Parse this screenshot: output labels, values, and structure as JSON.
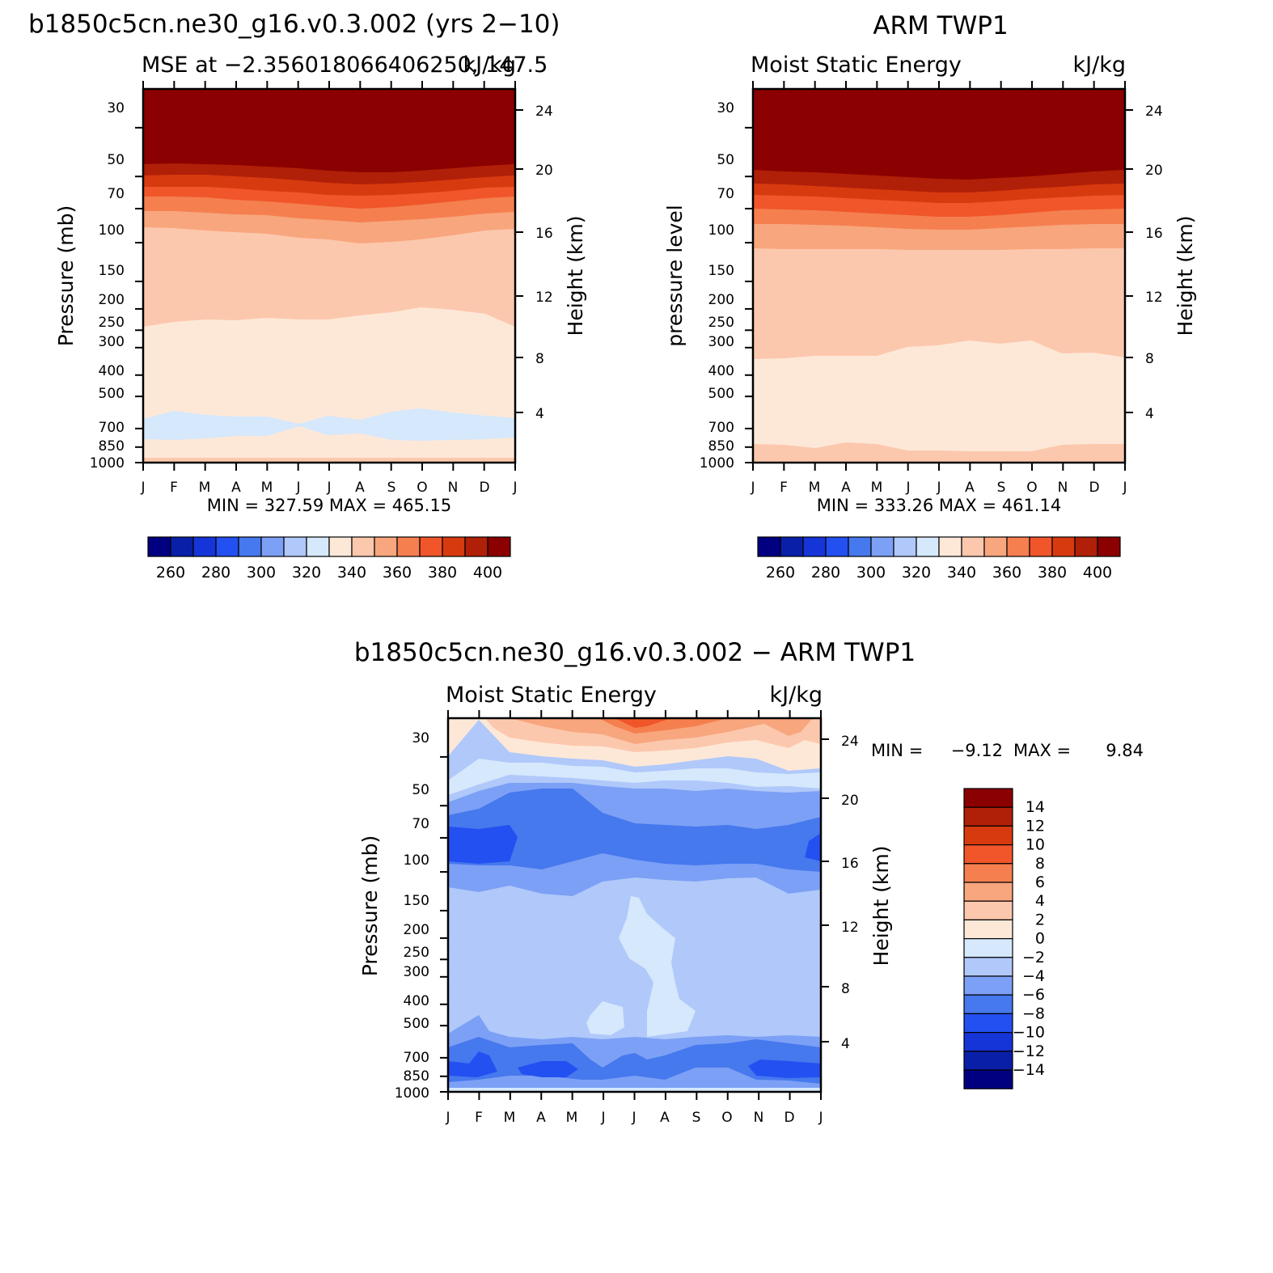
{
  "months": [
    "J",
    "F",
    "M",
    "A",
    "M",
    "J",
    "J",
    "A",
    "S",
    "O",
    "N",
    "D",
    "J"
  ],
  "pressure_ticks": [
    30,
    50,
    70,
    100,
    150,
    200,
    250,
    300,
    400,
    500,
    700,
    850,
    1000
  ],
  "height_ticks": [
    24,
    20,
    16,
    12,
    8,
    4
  ],
  "panels": [
    {
      "title": "b1850c5cn.ne30_g16.v0.3.002 (yrs 2−10)",
      "left_label": "MSE at −2.356018066406250, 147.5",
      "right_label": "kJ/kg",
      "ylabel": "Pressure (mb)",
      "y2label": "Height (km)",
      "minmax": "MIN = 327.59 MAX = 465.15",
      "colorbar_labels": [
        "260",
        "280",
        "300",
        "320",
        "340",
        "360",
        "380",
        "400"
      ]
    },
    {
      "title": "ARM TWP1",
      "left_label": "Moist Static Energy",
      "right_label": "kJ/kg",
      "ylabel": "pressure level",
      "y2label": "Height (km)",
      "minmax": "MIN = 333.26 MAX = 461.14",
      "colorbar_labels": [
        "260",
        "280",
        "300",
        "320",
        "340",
        "360",
        "380",
        "400"
      ]
    },
    {
      "title": "b1850c5cn.ne30_g16.v0.3.002 − ARM TWP1",
      "left_label": "Moist Static Energy",
      "right_label": "kJ/kg",
      "ylabel": "Pressure (mb)",
      "y2label": "Height (km)",
      "minmax_min_label": "MIN =",
      "minmax_min": "−9.12",
      "minmax_max_label": "MAX =",
      "minmax_max": "9.84",
      "colorbar_labels": [
        "14",
        "12",
        "10",
        "8",
        "6",
        "4",
        "2",
        "0",
        "−2",
        "−4",
        "−6",
        "−8",
        "−10",
        "−12",
        "−14"
      ]
    }
  ],
  "colors": {
    "mse_levels": [
      "#000080",
      "#0a1fa8",
      "#1535d8",
      "#2350f0",
      "#4678ee",
      "#7ca0f5",
      "#b0c8fa",
      "#d5e8fc",
      "#fde8d8",
      "#fcc8ad",
      "#f8a67e",
      "#f57f4f",
      "#f0562a",
      "#d83a0f",
      "#b02008",
      "#8b0000"
    ],
    "diff_levels": [
      "#8b0000",
      "#b02008",
      "#d83a0f",
      "#f0562a",
      "#f57f4f",
      "#f8a67e",
      "#fcc8ad",
      "#fde8d8",
      "#d5e8fc",
      "#b0c8fa",
      "#7ca0f5",
      "#4678ee",
      "#2350f0",
      "#1535d8",
      "#0a1fa8",
      "#000080"
    ]
  },
  "chart_data": [
    {
      "type": "heatmap",
      "title": "b1850c5cn.ne30_g16.v0.3.002 (yrs 2−10)",
      "subtitle": "MSE at −2.356018066406250, 147.5",
      "units": "kJ/kg",
      "xlabel": "",
      "ylabel": "Pressure (mb)",
      "y2label": "Height (km)",
      "x": [
        "J",
        "F",
        "M",
        "A",
        "M",
        "J",
        "J",
        "A",
        "S",
        "O",
        "N",
        "D",
        "J"
      ],
      "y_scale": "log",
      "ylim": [
        1000,
        20
      ],
      "contour_levels": [
        260,
        270,
        280,
        290,
        300,
        310,
        320,
        330,
        340,
        350,
        360,
        370,
        380,
        390,
        400
      ],
      "approx_level_boundaries_mb": {
        "above_400": [
          57,
          55,
          56,
          58,
          60,
          62,
          63,
          63,
          62,
          60,
          58,
          57,
          56
        ],
        "390_400": [
          66,
          64,
          65,
          67,
          69,
          72,
          74,
          74,
          72,
          70,
          68,
          66,
          65
        ],
        "380_390": [
          73,
          72,
          73,
          75,
          78,
          81,
          83,
          83,
          81,
          78,
          76,
          74,
          73
        ],
        "370_380": [
          83,
          82,
          83,
          86,
          89,
          92,
          95,
          95,
          92,
          89,
          86,
          84,
          83
        ],
        "360_370": [
          99,
          98,
          100,
          103,
          106,
          110,
          114,
          114,
          110,
          106,
          103,
          99,
          98
        ],
        "350_360": [
          265,
          255,
          250,
          252,
          245,
          245,
          248,
          237,
          228,
          215,
          218,
          230,
          265
        ],
        "340_350": [
          665,
          610,
          635,
          640,
          660,
          720,
          660,
          700,
          620,
          580,
          620,
          640,
          665
        ],
        "330_340": [
          860,
          860,
          855,
          830,
          845,
          760,
          860,
          870,
          870,
          860,
          860,
          855,
          860
        ]
      },
      "min": 327.59,
      "max": 465.15
    },
    {
      "type": "heatmap",
      "title": "ARM TWP1",
      "subtitle": "Moist Static Energy",
      "units": "kJ/kg",
      "xlabel": "",
      "ylabel": "pressure level",
      "y2label": "Height (km)",
      "x": [
        "J",
        "F",
        "M",
        "A",
        "M",
        "J",
        "J",
        "A",
        "S",
        "O",
        "N",
        "D",
        "J"
      ],
      "y_scale": "log",
      "ylim": [
        1000,
        20
      ],
      "contour_levels": [
        260,
        270,
        280,
        290,
        300,
        310,
        320,
        330,
        340,
        350,
        360,
        370,
        380,
        390,
        400
      ],
      "approx_level_boundaries_mb": {
        "above_400": [
          60,
          59,
          60,
          62,
          64,
          66,
          68,
          68,
          66,
          64,
          62,
          60,
          60
        ],
        "390_400": [
          70,
          69,
          70,
          72,
          74,
          77,
          79,
          79,
          77,
          74,
          72,
          70,
          70
        ],
        "380_390": [
          79,
          79,
          80,
          82,
          85,
          88,
          90,
          90,
          87,
          84,
          81,
          80,
          79
        ],
        "370_380": [
          92,
          92,
          93,
          95,
          98,
          101,
          104,
          104,
          101,
          97,
          94,
          92,
          92
        ],
        "360_370": [
          126,
          126,
          125,
          125,
          125,
          127,
          128,
          128,
          127,
          126,
          125,
          125,
          126
        ],
        "350_360": [
          355,
          350,
          345,
          345,
          348,
          315,
          310,
          298,
          312,
          300,
          345,
          340,
          360
        ],
        "340_350": [
          860,
          855,
          870,
          835,
          845,
          900,
          900,
          905,
          905,
          905,
          860,
          860,
          860
        ]
      },
      "min": 333.26,
      "max": 461.14
    },
    {
      "type": "heatmap",
      "title": "b1850c5cn.ne30_g16.v0.3.002 − ARM TWP1",
      "subtitle": "Moist Static Energy",
      "units": "kJ/kg",
      "xlabel": "",
      "ylabel": "Pressure (mb)",
      "y2label": "Height (km)",
      "x": [
        "J",
        "F",
        "M",
        "A",
        "M",
        "J",
        "J",
        "A",
        "S",
        "O",
        "N",
        "D",
        "J"
      ],
      "y_scale": "log",
      "ylim": [
        1000,
        20
      ],
      "contour_levels": [
        -14,
        -12,
        -10,
        -8,
        -6,
        -4,
        -2,
        0,
        2,
        4,
        6,
        8,
        10,
        12,
        14
      ],
      "approx_level_boundaries_mb": {
        "0_2_top": [
          32,
          20,
          24,
          26,
          29,
          31,
          33,
          33,
          32,
          31,
          27,
          29,
          32
        ],
        "-2_0": [
          48,
          35,
          40,
          41,
          43,
          44,
          45,
          44,
          43,
          41,
          40,
          42,
          44
        ],
        "-4_-2": [
          58,
          47,
          48,
          48,
          49,
          51,
          52,
          52,
          51,
          50,
          50,
          51,
          52
        ],
        "-6_-4": [
          104,
          106,
          104,
          103,
          111,
          105,
          104,
          103,
          104,
          103,
          105,
          103,
          106
        ],
        "-4_-6_lower": [
          560,
          540,
          575,
          580,
          575,
          575,
          575,
          580,
          580,
          575,
          575,
          575,
          575
        ]
      },
      "min": -9.12,
      "max": 9.84
    }
  ]
}
